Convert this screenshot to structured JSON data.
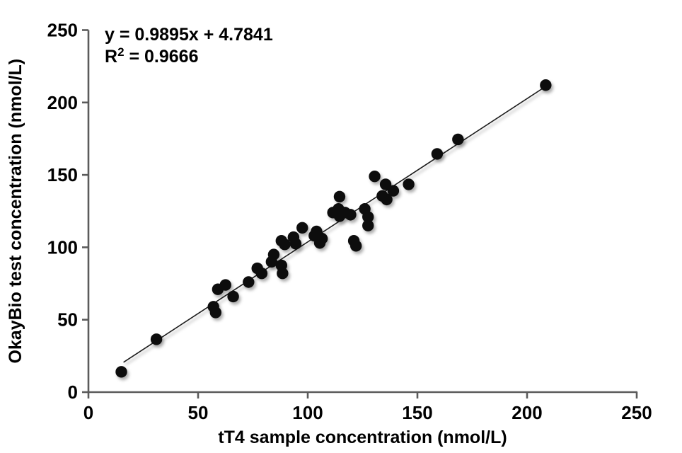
{
  "annotation": {
    "equation_line": "y = 0.9895x + 4.7841",
    "r2_base": "R",
    "r2_sup": "2",
    "r2_rest": " = 0.9666"
  },
  "chart_data": {
    "type": "scatter",
    "title": "",
    "xlabel": "tT4 sample concentration (nmol/L)",
    "ylabel": "OkayBio test concentration (nmol/L)",
    "xlim": [
      0,
      250
    ],
    "ylim": [
      0,
      250
    ],
    "xticks": [
      0,
      50,
      100,
      150,
      200,
      250
    ],
    "yticks": [
      0,
      50,
      100,
      150,
      200,
      250
    ],
    "grid": false,
    "legend": "none",
    "trendline": {
      "slope": 0.9895,
      "intercept": 4.7841,
      "r2": 0.9666,
      "x_start": 16,
      "x_end": 208.5
    },
    "points": [
      [
        15,
        14
      ],
      [
        31,
        36.5
      ],
      [
        57,
        59
      ],
      [
        58,
        55
      ],
      [
        59,
        71
      ],
      [
        62.5,
        74
      ],
      [
        66,
        66
      ],
      [
        73,
        76
      ],
      [
        77,
        85.5
      ],
      [
        79,
        82
      ],
      [
        83.5,
        90
      ],
      [
        84.5,
        95
      ],
      [
        88,
        87.5
      ],
      [
        88.5,
        82
      ],
      [
        88,
        104.5
      ],
      [
        89.5,
        102
      ],
      [
        93.5,
        107
      ],
      [
        94.5,
        102.5
      ],
      [
        97.5,
        113.5
      ],
      [
        103,
        108
      ],
      [
        104,
        111
      ],
      [
        105.5,
        103
      ],
      [
        106.5,
        106
      ],
      [
        121,
        104.5
      ],
      [
        122,
        101
      ],
      [
        111.5,
        124
      ],
      [
        114,
        126.5
      ],
      [
        114.5,
        121.5
      ],
      [
        117,
        124
      ],
      [
        119.5,
        122.5
      ],
      [
        114.5,
        135
      ],
      [
        126,
        126.5
      ],
      [
        127.5,
        121
      ],
      [
        127.5,
        115
      ],
      [
        130.5,
        149
      ],
      [
        134,
        135.5
      ],
      [
        136,
        133
      ],
      [
        135.5,
        143.5
      ],
      [
        139,
        139
      ],
      [
        146,
        143.5
      ],
      [
        159,
        164.5
      ],
      [
        168.5,
        174.5
      ],
      [
        208.5,
        212
      ]
    ]
  },
  "colors": {
    "point": "#0d0d0d",
    "trendline": "#1a1a1a",
    "axis": "#5b5b5b",
    "text": "#000000",
    "background": "#ffffff"
  }
}
